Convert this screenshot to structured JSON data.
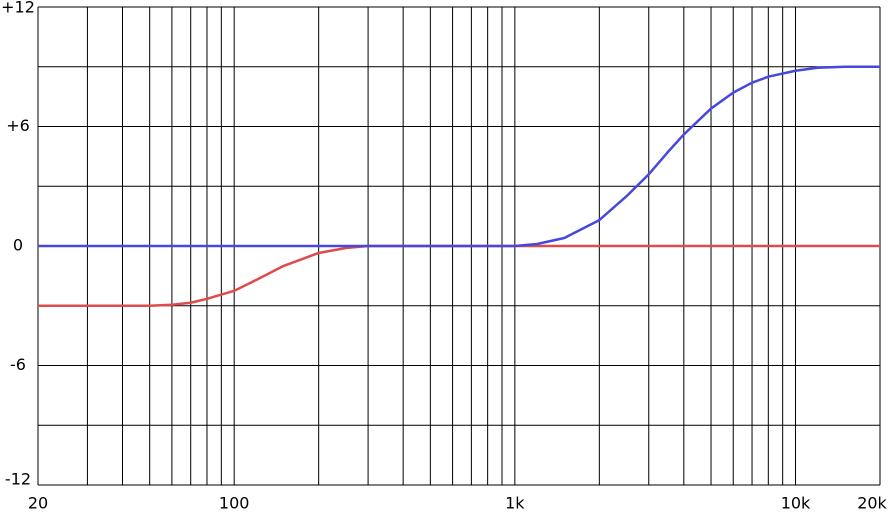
{
  "chart_data": {
    "type": "line",
    "x_scale": "log",
    "grid": true,
    "xlim": [
      20,
      20000
    ],
    "ylim": [
      -12,
      12
    ],
    "xticks": [
      20,
      100,
      {
        "value": 1000,
        "label": "1k"
      },
      {
        "value": 10000,
        "label": "10k"
      },
      {
        "value": 20000,
        "label": "20k"
      }
    ],
    "xgrid_minor": [
      30,
      40,
      50,
      60,
      70,
      80,
      90,
      200,
      300,
      400,
      500,
      600,
      700,
      800,
      900,
      2000,
      3000,
      4000,
      5000,
      6000,
      7000,
      8000,
      9000
    ],
    "yticks": [
      {
        "value": 12,
        "label": "+12"
      },
      {
        "value": 6,
        "label": "+6"
      },
      0,
      -6,
      -12
    ],
    "ygrid_minor": [
      9,
      3,
      -3,
      -9
    ],
    "series": [
      {
        "color": "#dd4b4b",
        "x": [
          20,
          50,
          60,
          70,
          80,
          100,
          120,
          150,
          200,
          250,
          300,
          1000,
          20000
        ],
        "values": [
          -3,
          -3,
          -2.95,
          -2.85,
          -2.65,
          -2.25,
          -1.7,
          -1.0,
          -0.35,
          -0.1,
          0,
          0,
          0
        ]
      },
      {
        "color": "#4848dd",
        "x": [
          20,
          500,
          1000,
          1200,
          1500,
          2000,
          2500,
          3000,
          3500,
          4000,
          5000,
          6000,
          7000,
          8000,
          10000,
          12000,
          15000,
          20000
        ],
        "values": [
          0,
          0,
          0,
          0.1,
          0.4,
          1.3,
          2.5,
          3.6,
          4.7,
          5.6,
          6.9,
          7.7,
          8.2,
          8.5,
          8.8,
          8.95,
          9,
          9
        ]
      }
    ]
  }
}
